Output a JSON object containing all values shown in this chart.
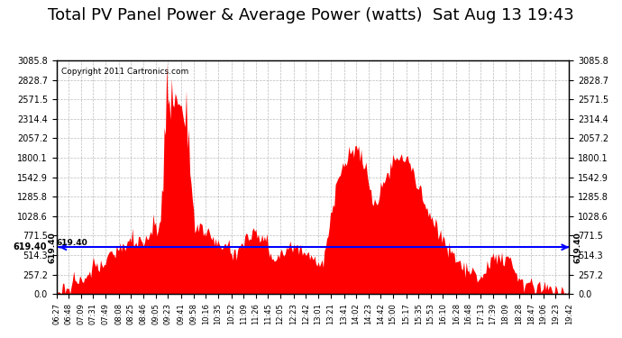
{
  "title": "Total PV Panel Power & Average Power (watts)  Sat Aug 13 19:43",
  "copyright": "Copyright 2011 Cartronics.com",
  "ylim": [
    0.0,
    3085.8
  ],
  "yticks": [
    0.0,
    257.2,
    514.3,
    771.5,
    1028.6,
    1285.8,
    1542.9,
    1800.1,
    2057.2,
    2314.4,
    2571.5,
    2828.7,
    3085.8
  ],
  "average_line": 619.4,
  "average_label": "619.40",
  "fill_color": "#ff0000",
  "line_color": "#0000ff",
  "background_color": "#ffffff",
  "grid_color": "#aaaaaa",
  "title_fontsize": 13,
  "xlabel_fontsize": 7,
  "ylabel_fontsize": 8,
  "tick_labels": [
    "06:27",
    "06:48",
    "07:09",
    "07:31",
    "07:49",
    "08:08",
    "08:25",
    "08:46",
    "09:05",
    "09:23",
    "09:41",
    "09:58",
    "10:16",
    "10:35",
    "10:52",
    "11:09",
    "11:26",
    "11:45",
    "12:05",
    "12:23",
    "12:42",
    "13:01",
    "13:21",
    "13:41",
    "14:02",
    "14:23",
    "14:42",
    "15:00",
    "15:17",
    "15:35",
    "15:53",
    "16:10",
    "16:28",
    "16:48",
    "17:13",
    "17:39",
    "18:09",
    "18:28",
    "18:47",
    "19:06",
    "19:23",
    "19:42"
  ],
  "n_points": 420
}
